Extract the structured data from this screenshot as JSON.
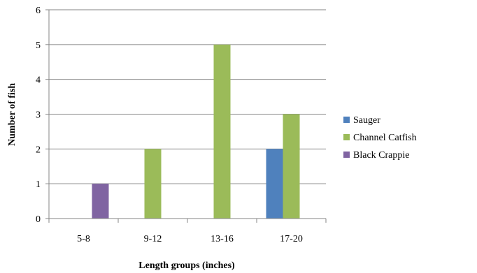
{
  "chart_data": {
    "type": "bar",
    "categories": [
      "5-8",
      "9-12",
      "13-16",
      "17-20"
    ],
    "series": [
      {
        "name": "Sauger",
        "color": "#4F81BD",
        "values": [
          0,
          0,
          0,
          2
        ]
      },
      {
        "name": "Channel Catfish",
        "color": "#9BBB59",
        "values": [
          0,
          2,
          5,
          3
        ]
      },
      {
        "name": "Black Crappie",
        "color": "#8064A2",
        "values": [
          1,
          0,
          0,
          0
        ]
      }
    ],
    "xlabel": "Length groups (inches)",
    "ylabel": "Number of fish",
    "ylim": [
      0,
      6
    ],
    "yticks": [
      0,
      1,
      2,
      3,
      4,
      5,
      6
    ],
    "grid": true,
    "legend": "right"
  }
}
